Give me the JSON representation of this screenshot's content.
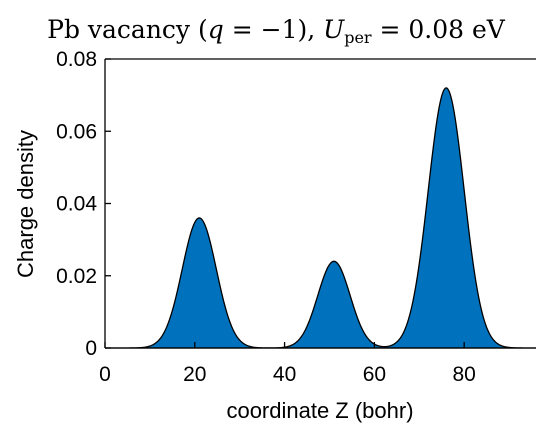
{
  "chart_data": {
    "type": "area",
    "title": "Pb vacancy (q = −1), U_per = 0.08 eV",
    "title_parts": {
      "prefix": "Pb vacancy (",
      "q": "q",
      "q_value": " = −1), ",
      "u": "U",
      "u_sub": "per",
      "u_value": " = 0.08 eV"
    },
    "xlabel": "coordinate Z (bohr)",
    "ylabel": "Charge density",
    "xlim": [
      0,
      96
    ],
    "ylim": [
      0,
      0.08
    ],
    "xticks": [
      0,
      20,
      40,
      60,
      80
    ],
    "xtick_labels": [
      "0",
      "20",
      "40",
      "60",
      "80"
    ],
    "yticks": [
      0,
      0.02,
      0.04,
      0.06,
      0.08
    ],
    "ytick_labels": [
      "0",
      "0.02",
      "0.04",
      "0.06",
      "0.08"
    ],
    "grid": false,
    "fill_color": "#0072BD",
    "peaks": [
      {
        "center": 21,
        "height": 0.036,
        "width": 3.8
      },
      {
        "center": 51,
        "height": 0.024,
        "width": 3.6
      },
      {
        "center": 76,
        "height": 0.072,
        "width": 4.0
      }
    ]
  }
}
